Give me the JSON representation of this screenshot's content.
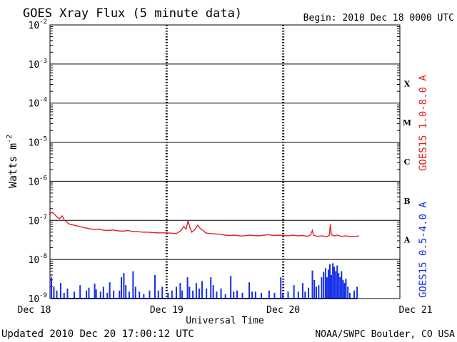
{
  "chart_data": {
    "type": "line",
    "title": "GOES Xray Flux (5 minute data)",
    "begin_label": "Begin:  2010 Dec 18 0000 UTC",
    "xlabel": "Universal Time",
    "ylabel_base": "Watts m",
    "ylabel_exp": "-2",
    "y_scale": "log",
    "ylim": [
      1e-09,
      0.01
    ],
    "xlim": [
      0,
      72
    ],
    "x_unit": "hours since 2010 Dec 18 0000 UTC",
    "x_ticks": [
      {
        "t": 0,
        "label": "Dec 18"
      },
      {
        "t": 24,
        "label": "Dec 19"
      },
      {
        "t": 48,
        "label": "Dec 20"
      },
      {
        "t": 72,
        "label": "Dec 21"
      }
    ],
    "y_ticks": [
      {
        "exp": -9,
        "label": "10",
        "sup": "-9"
      },
      {
        "exp": -8,
        "label": "10",
        "sup": "-8"
      },
      {
        "exp": -7,
        "label": "10",
        "sup": "-7"
      },
      {
        "exp": -6,
        "label": "10",
        "sup": "-6"
      },
      {
        "exp": -5,
        "label": "10",
        "sup": "-5"
      },
      {
        "exp": -4,
        "label": "10",
        "sup": "-4"
      },
      {
        "exp": -3,
        "label": "10",
        "sup": "-3"
      },
      {
        "exp": -2,
        "label": "10",
        "sup": "-2"
      }
    ],
    "flare_classes": [
      {
        "label": "A",
        "exp_mid": -7.5
      },
      {
        "label": "B",
        "exp_mid": -6.5
      },
      {
        "label": "C",
        "exp_mid": -5.5
      },
      {
        "label": "M",
        "exp_mid": -4.5
      },
      {
        "label": "X",
        "exp_mid": -3.5
      }
    ],
    "grid": true,
    "series": [
      {
        "name": "GOES15 1.0-8.0 A",
        "color": "#e02020",
        "points": [
          [
            0.0,
            1.5e-07
          ],
          [
            0.5,
            1.6e-07
          ],
          [
            1.0,
            1.4e-07
          ],
          [
            1.5,
            1.2e-07
          ],
          [
            2.0,
            1.1e-07
          ],
          [
            2.5,
            1.3e-07
          ],
          [
            3.0,
            1e-07
          ],
          [
            3.5,
            9e-08
          ],
          [
            4.0,
            8e-08
          ],
          [
            5.0,
            7.5e-08
          ],
          [
            6.0,
            7e-08
          ],
          [
            7.0,
            6.5e-08
          ],
          [
            8.0,
            6.2e-08
          ],
          [
            9.0,
            5.8e-08
          ],
          [
            10.0,
            6e-08
          ],
          [
            11.0,
            5.6e-08
          ],
          [
            12.0,
            5.5e-08
          ],
          [
            13.0,
            5.7e-08
          ],
          [
            14.0,
            5.4e-08
          ],
          [
            15.0,
            5.3e-08
          ],
          [
            16.0,
            5.5e-08
          ],
          [
            17.0,
            5.2e-08
          ],
          [
            18.0,
            5.2e-08
          ],
          [
            19.0,
            5e-08
          ],
          [
            20.0,
            5e-08
          ],
          [
            21.0,
            4.9e-08
          ],
          [
            22.0,
            4.8e-08
          ],
          [
            23.0,
            4.8e-08
          ],
          [
            24.0,
            4.8e-08
          ],
          [
            25.0,
            4.7e-08
          ],
          [
            26.0,
            4.6e-08
          ],
          [
            27.0,
            5.5e-08
          ],
          [
            27.5,
            7e-08
          ],
          [
            28.0,
            6e-08
          ],
          [
            28.4,
            9.8e-08
          ],
          [
            28.8,
            6.5e-08
          ],
          [
            29.2,
            5e-08
          ],
          [
            29.8,
            5.8e-08
          ],
          [
            30.4,
            7.5e-08
          ],
          [
            31.0,
            6e-08
          ],
          [
            31.6,
            5.5e-08
          ],
          [
            32.0,
            4.8e-08
          ],
          [
            33.0,
            4.6e-08
          ],
          [
            34.0,
            4.5e-08
          ],
          [
            35.0,
            4.4e-08
          ],
          [
            36.0,
            4.2e-08
          ],
          [
            37.0,
            4.1e-08
          ],
          [
            38.0,
            4.2e-08
          ],
          [
            39.0,
            4e-08
          ],
          [
            40.0,
            4e-08
          ],
          [
            41.0,
            4.2e-08
          ],
          [
            42.0,
            4.1e-08
          ],
          [
            43.0,
            4e-08
          ],
          [
            44.0,
            4.2e-08
          ],
          [
            45.0,
            4.3e-08
          ],
          [
            46.0,
            4.1e-08
          ],
          [
            47.0,
            4.2e-08
          ],
          [
            48.0,
            4.1e-08
          ],
          [
            49.0,
            4e-08
          ],
          [
            50.0,
            4.2e-08
          ],
          [
            51.0,
            4e-08
          ],
          [
            52.0,
            4.1e-08
          ],
          [
            53.0,
            3.9e-08
          ],
          [
            53.6,
            4.2e-08
          ],
          [
            54.0,
            5.5e-08
          ],
          [
            54.2,
            4.2e-08
          ],
          [
            55.0,
            3.9e-08
          ],
          [
            56.0,
            4e-08
          ],
          [
            57.0,
            3.8e-08
          ],
          [
            57.5,
            4.2e-08
          ],
          [
            57.7,
            8e-08
          ],
          [
            57.9,
            4.3e-08
          ],
          [
            58.5,
            4e-08
          ],
          [
            59.0,
            4.2e-08
          ],
          [
            60.0,
            3.9e-08
          ],
          [
            61.0,
            4e-08
          ],
          [
            62.0,
            3.8e-08
          ],
          [
            63.0,
            3.9e-08
          ],
          [
            63.6,
            4e-08
          ]
        ]
      },
      {
        "name": "GOES15 0.5-4.0 A",
        "color": "#1530e6",
        "baseline": 1e-09,
        "spikes": [
          [
            0.3,
            3.5e-09
          ],
          [
            0.8,
            2e-09
          ],
          [
            1.4,
            1.6e-09
          ],
          [
            2.2,
            2.5e-09
          ],
          [
            2.9,
            1.4e-09
          ],
          [
            3.6,
            1.8e-09
          ],
          [
            5.0,
            1.5e-09
          ],
          [
            6.2,
            2.2e-09
          ],
          [
            7.5,
            1.6e-09
          ],
          [
            8.0,
            1.9e-09
          ],
          [
            9.2,
            2.4e-09
          ],
          [
            9.5,
            1.7e-09
          ],
          [
            10.4,
            1.5e-09
          ],
          [
            11.0,
            2e-09
          ],
          [
            11.8,
            1.4e-09
          ],
          [
            12.3,
            2.6e-09
          ],
          [
            13.1,
            1.6e-09
          ],
          [
            14.3,
            1.6e-09
          ],
          [
            14.7,
            3.5e-09
          ],
          [
            15.2,
            4.5e-09
          ],
          [
            15.6,
            2.2e-09
          ],
          [
            16.3,
            1.5e-09
          ],
          [
            17.1,
            5e-09
          ],
          [
            17.6,
            2e-09
          ],
          [
            18.4,
            1.5e-09
          ],
          [
            19.3,
            1.3e-09
          ],
          [
            20.5,
            1.6e-09
          ],
          [
            21.6,
            4e-09
          ],
          [
            22.3,
            1.6e-09
          ],
          [
            23.1,
            2e-09
          ],
          [
            24.3,
            1.4e-09
          ],
          [
            25.1,
            1.6e-09
          ],
          [
            26.0,
            2e-09
          ],
          [
            26.8,
            2.5e-09
          ],
          [
            27.2,
            1.6e-09
          ],
          [
            28.3,
            3.5e-09
          ],
          [
            28.7,
            2e-09
          ],
          [
            29.4,
            1.6e-09
          ],
          [
            30.1,
            2.5e-09
          ],
          [
            30.7,
            1.8e-09
          ],
          [
            31.3,
            2.8e-09
          ],
          [
            32.2,
            1.8e-09
          ],
          [
            33.1,
            3.5e-09
          ],
          [
            33.6,
            2.2e-09
          ],
          [
            34.3,
            1.5e-09
          ],
          [
            35.2,
            1.8e-09
          ],
          [
            36.1,
            1.3e-09
          ],
          [
            37.2,
            3.8e-09
          ],
          [
            37.8,
            1.5e-09
          ],
          [
            38.5,
            1.6e-09
          ],
          [
            39.6,
            1.4e-09
          ],
          [
            41.0,
            2.6e-09
          ],
          [
            41.6,
            1.5e-09
          ],
          [
            42.3,
            1.5e-09
          ],
          [
            43.5,
            1.4e-09
          ],
          [
            45.1,
            1.6e-09
          ],
          [
            46.2,
            1.4e-09
          ],
          [
            47.5,
            3.5e-09
          ],
          [
            47.9,
            1.4e-09
          ],
          [
            49.0,
            1.5e-09
          ],
          [
            50.2,
            2.2e-09
          ],
          [
            51.1,
            1.5e-09
          ],
          [
            52.0,
            2.5e-09
          ],
          [
            52.5,
            1.5e-09
          ],
          [
            53.2,
            1.9e-09
          ],
          [
            54.0,
            5.2e-09
          ],
          [
            54.4,
            3e-09
          ],
          [
            54.8,
            2e-09
          ],
          [
            55.3,
            2.2e-09
          ],
          [
            55.9,
            3.5e-09
          ],
          [
            56.3,
            4.8e-09
          ],
          [
            56.7,
            6e-09
          ],
          [
            57.0,
            3.5e-09
          ],
          [
            57.3,
            5.5e-09
          ],
          [
            57.6,
            7.5e-09
          ],
          [
            57.9,
            4e-09
          ],
          [
            58.2,
            8e-09
          ],
          [
            58.5,
            6.5e-09
          ],
          [
            58.8,
            5e-09
          ],
          [
            59.1,
            7e-09
          ],
          [
            59.4,
            4.5e-09
          ],
          [
            59.7,
            3.5e-09
          ],
          [
            60.0,
            5e-09
          ],
          [
            60.3,
            3e-09
          ],
          [
            60.6,
            2.5e-09
          ],
          [
            60.9,
            3.2e-09
          ],
          [
            61.3,
            2e-09
          ],
          [
            61.7,
            1.4e-09
          ],
          [
            62.6,
            1.6e-09
          ],
          [
            63.2,
            2e-09
          ]
        ]
      }
    ]
  },
  "footer": {
    "updated": "Updated 2010 Dec 20 17:00:12 UTC",
    "source": "NOAA/SWPC Boulder, CO USA"
  }
}
